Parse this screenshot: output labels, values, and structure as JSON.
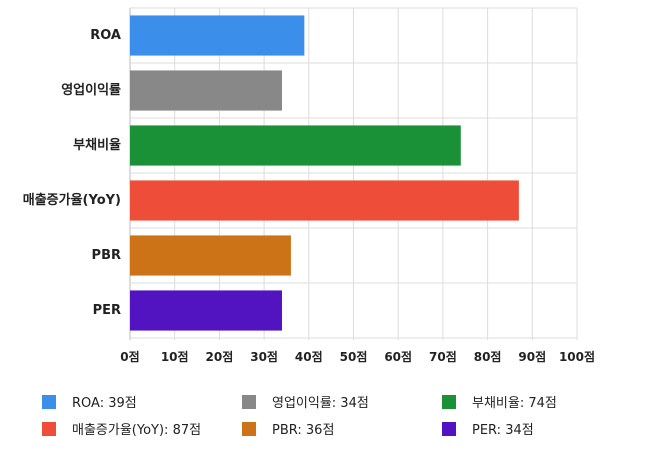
{
  "chart_data": {
    "type": "bar",
    "orientation": "horizontal",
    "categories": [
      "ROA",
      "영업이익률",
      "부채비율",
      "매출증가율(YoY)",
      "PBR",
      "PER"
    ],
    "values": [
      39,
      34,
      74,
      87,
      36,
      34
    ],
    "colors": [
      "#3B8EEA",
      "#888888",
      "#1A9136",
      "#EE4E39",
      "#CC7317",
      "#5114C0"
    ],
    "xlim": [
      0,
      100
    ],
    "xticks": [
      "0점",
      "10점",
      "20점",
      "30점",
      "40점",
      "50점",
      "60점",
      "70점",
      "80점",
      "90점",
      "100점"
    ],
    "grid": true,
    "legend_position": "bottom",
    "legend": [
      [
        "ROA: 39점",
        "영업이익률: 34점",
        "부채비율: 74점"
      ],
      [
        "매출증가율(YoY): 87점",
        "PBR: 36점",
        "PER: 34점"
      ]
    ]
  }
}
